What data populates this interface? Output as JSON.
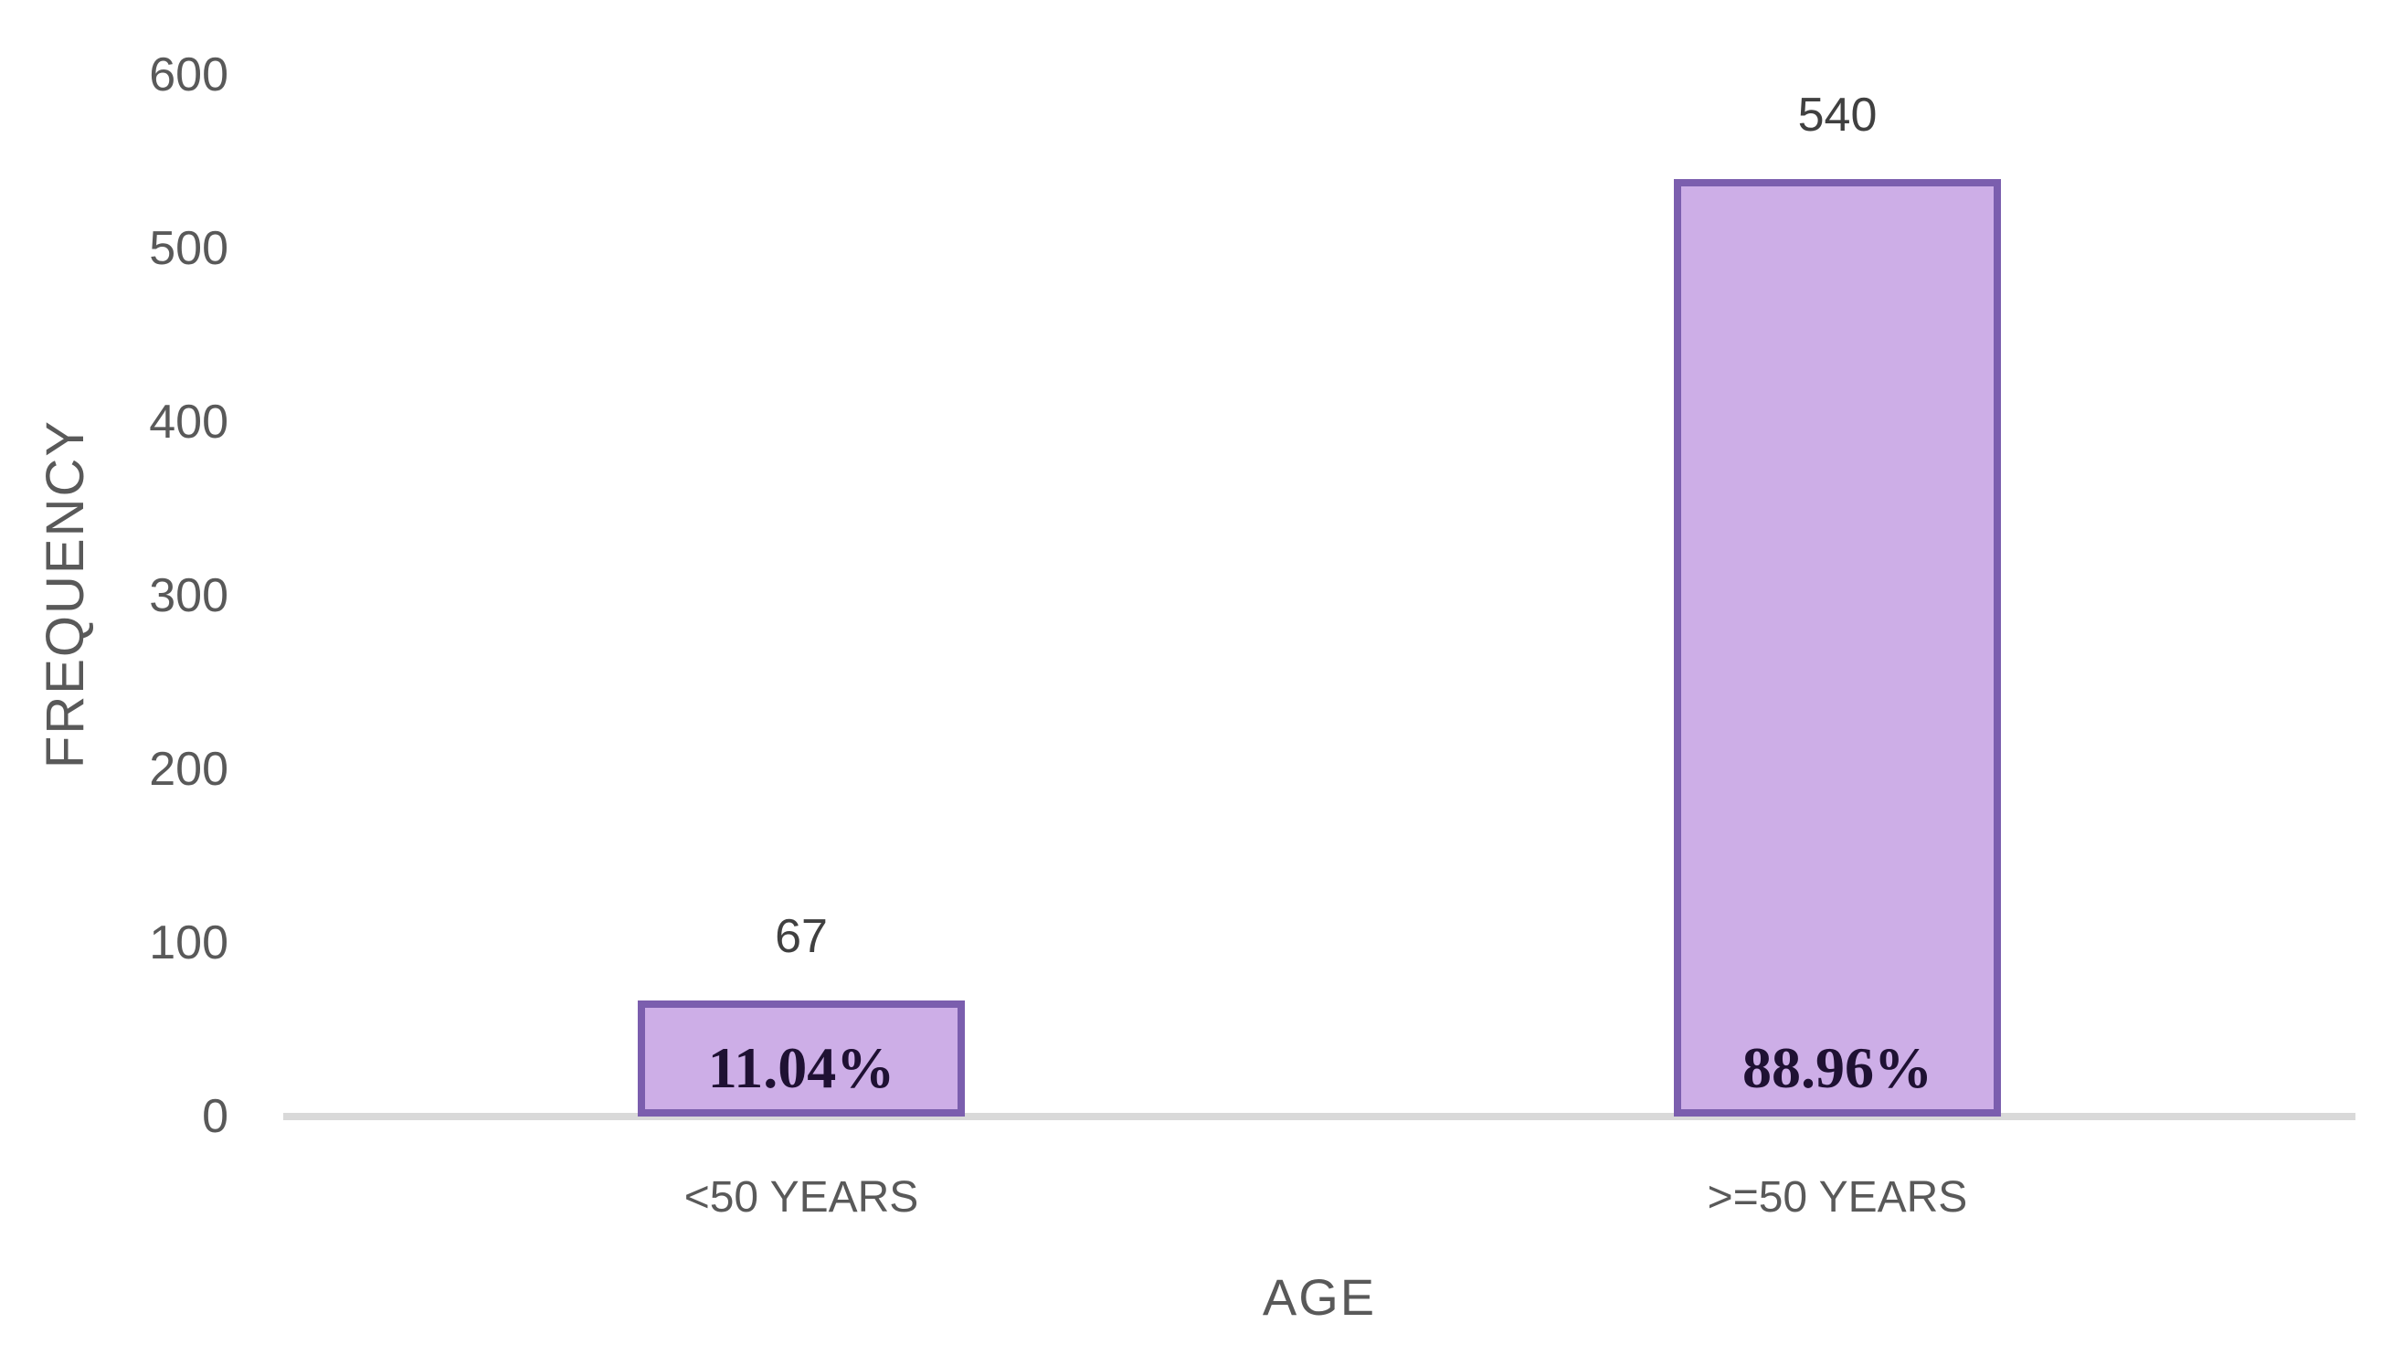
{
  "chart_data": {
    "type": "bar",
    "title": "",
    "xlabel": "AGE",
    "ylabel": "FREQUENCY",
    "categories": [
      "<50 YEARS",
      ">=50 YEARS"
    ],
    "values": [
      67,
      540
    ],
    "bar_value_labels": [
      "67",
      "540"
    ],
    "bar_percent_labels": [
      "11.04%",
      "88.96%"
    ],
    "series": [
      {
        "name": "Frequency",
        "values": [
          67,
          540
        ]
      }
    ],
    "ylim": [
      0,
      600
    ],
    "yticks": [
      0,
      100,
      200,
      300,
      400,
      500,
      600
    ],
    "grid": false,
    "legend": false,
    "colors": {
      "bar_fill": "#CDAEE7",
      "bar_border": "#7B5EAE",
      "axis_line": "#D9D9D9",
      "tick_text": "#595959",
      "value_text": "#404040",
      "percent_text": "#1F1133"
    }
  }
}
